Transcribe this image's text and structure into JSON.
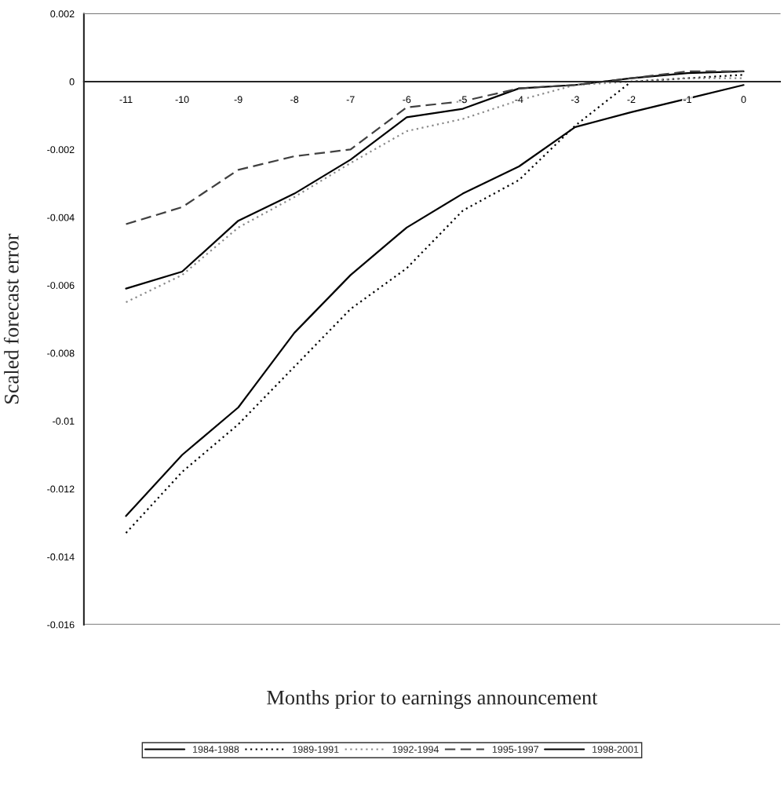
{
  "chart_data": {
    "type": "line",
    "xlabel": "Months prior to earnings announcement",
    "ylabel": "Scaled forecast error",
    "categories": [
      "-11",
      "-10",
      "-9",
      "-8",
      "-7",
      "-6",
      "-5",
      "-4",
      "-3",
      "-2",
      "-1",
      "0"
    ],
    "ylim": [
      -0.016,
      0.002
    ],
    "yticks": [
      {
        "value": 0.002,
        "label": "0.002"
      },
      {
        "value": 0,
        "label": "0"
      },
      {
        "value": -0.002,
        "label": "-0.002"
      },
      {
        "value": -0.004,
        "label": "-0.004"
      },
      {
        "value": -0.006,
        "label": "-0.006"
      },
      {
        "value": -0.008,
        "label": "-0.008"
      },
      {
        "value": -0.01,
        "label": "-0.01"
      },
      {
        "value": -0.012,
        "label": "-0.012"
      },
      {
        "value": -0.014,
        "label": "-0.014"
      },
      {
        "value": -0.016,
        "label": "-0.016"
      }
    ],
    "series": [
      {
        "name": "1984-1988",
        "color": "#000000",
        "line_style": "solid",
        "values": [
          -0.0061,
          -0.0056,
          -0.0041,
          -0.0033,
          -0.0023,
          -0.00105,
          -0.0008,
          -0.0002,
          -0.0001,
          0.0001,
          0.00025,
          0.0003
        ]
      },
      {
        "name": "1989-1991",
        "color": "#000000",
        "line_style": "dotted",
        "values": [
          -0.0133,
          -0.0115,
          -0.0101,
          -0.0084,
          -0.0067,
          -0.0055,
          -0.0038,
          -0.0029,
          -0.0013,
          0.0,
          0.0001,
          0.0002
        ]
      },
      {
        "name": "1992-1994",
        "color": "#8a8a8a",
        "line_style": "dotted",
        "values": [
          -0.0065,
          -0.0057,
          -0.0043,
          -0.0034,
          -0.0024,
          -0.00146,
          -0.0011,
          -0.00055,
          -0.0001,
          0.0,
          0.0001,
          0.0001
        ]
      },
      {
        "name": "1995-1997",
        "color": "#404040",
        "line_style": "dashed",
        "values": [
          -0.0042,
          -0.0037,
          -0.0026,
          -0.0022,
          -0.002,
          -0.00076,
          -0.00058,
          -0.0002,
          -0.0001,
          0.0001,
          0.0003,
          0.0003
        ]
      },
      {
        "name": "1998-2001",
        "color": "#000000",
        "line_style": "solid",
        "values": [
          -0.0128,
          -0.011,
          -0.0096,
          -0.0074,
          -0.0057,
          -0.0043,
          -0.0033,
          -0.0025,
          -0.00134,
          -0.0009,
          -0.0005,
          -0.0001
        ]
      }
    ],
    "grid": false,
    "legend": "bottom"
  }
}
